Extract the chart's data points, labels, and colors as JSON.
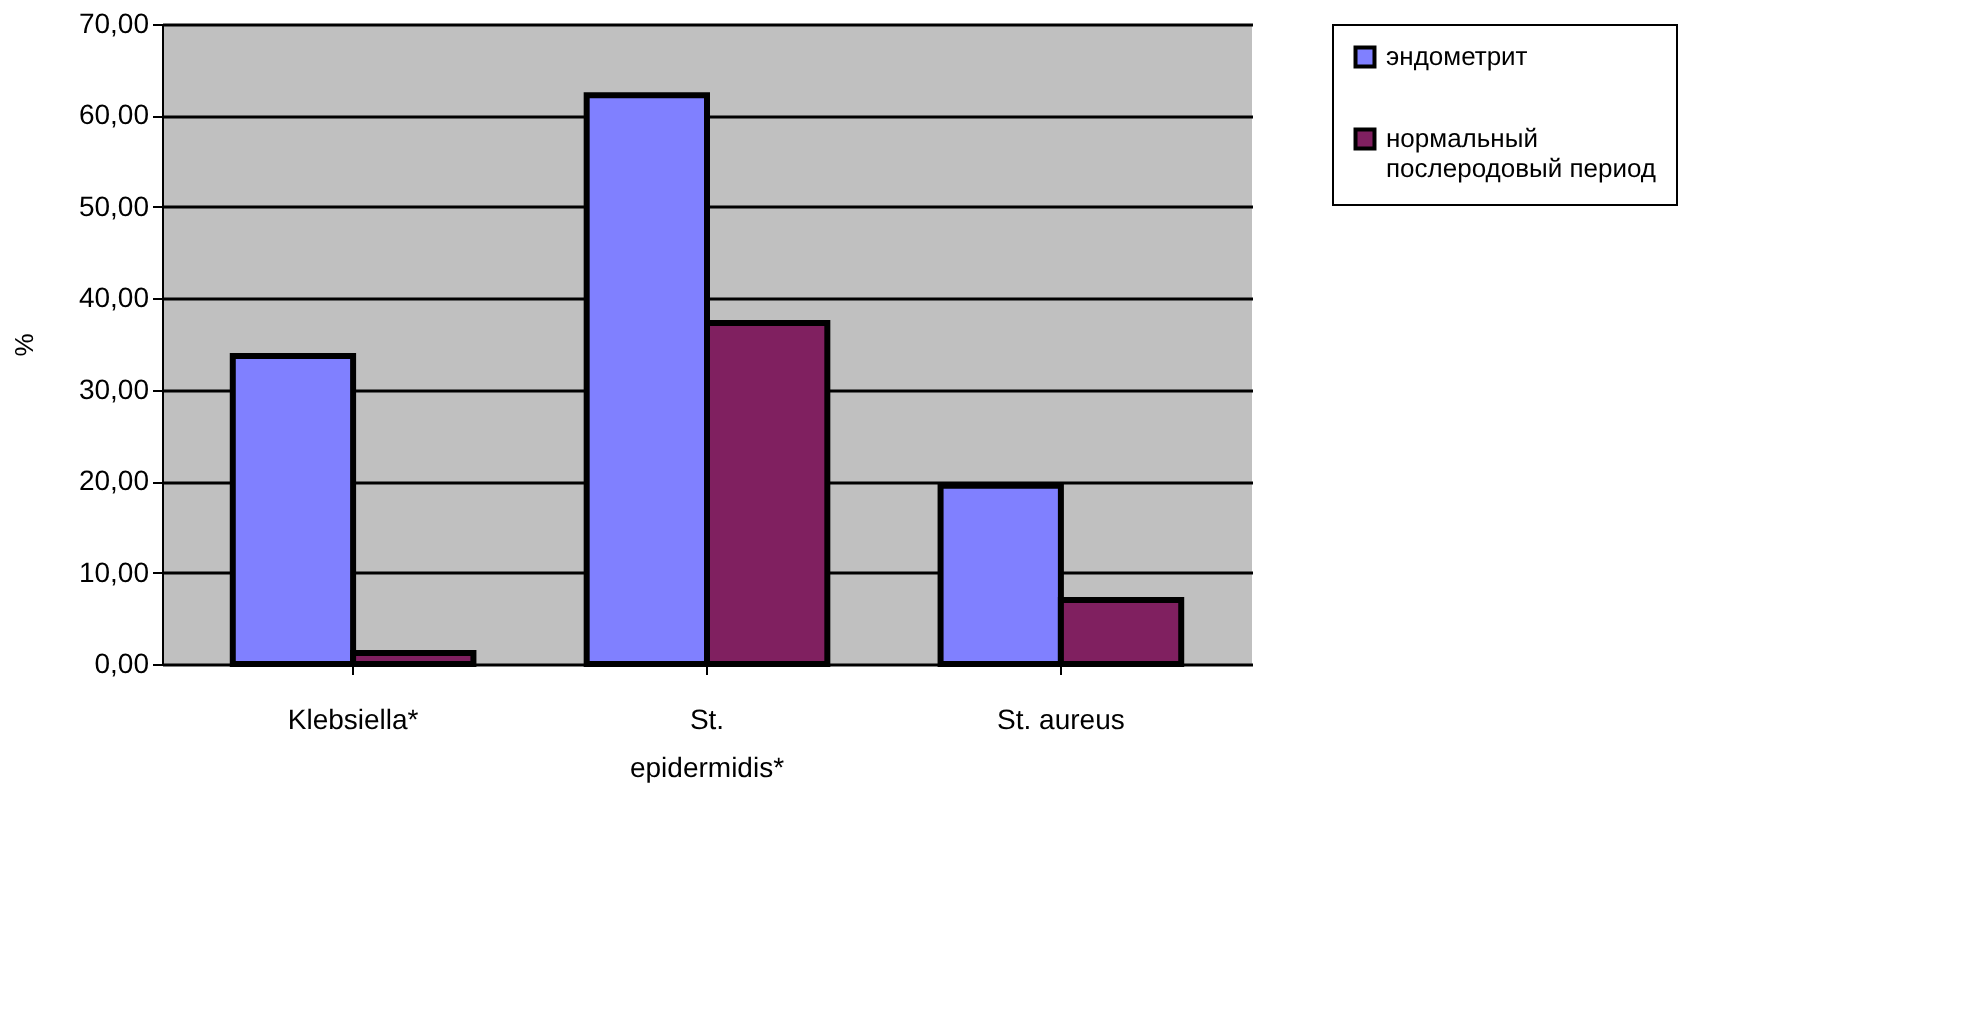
{
  "chart_data": {
    "type": "bar",
    "ylabel": "%",
    "categories": [
      "Klebsiella*",
      "St.\nepidermidis*",
      "St. aureus"
    ],
    "series": [
      {
        "name": "эндометрит",
        "color": "#8080ff",
        "values": [
          33.7,
          62.2,
          19.5
        ]
      },
      {
        "name": "нормальный\nпослеродовый период",
        "color": "#802060",
        "values": [
          1.2,
          37.3,
          7.0
        ]
      }
    ],
    "ylim": [
      0,
      70
    ],
    "yticks": [
      {
        "value": 0,
        "label": "0,00"
      },
      {
        "value": 10,
        "label": "10,00"
      },
      {
        "value": 20,
        "label": "20,00"
      },
      {
        "value": 30,
        "label": "30,00"
      },
      {
        "value": 40,
        "label": "40,00"
      },
      {
        "value": 50,
        "label": "50,00"
      },
      {
        "value": 60,
        "label": "60,00"
      },
      {
        "value": 70,
        "label": "70,00"
      }
    ],
    "grid": "y",
    "legend": "right"
  }
}
